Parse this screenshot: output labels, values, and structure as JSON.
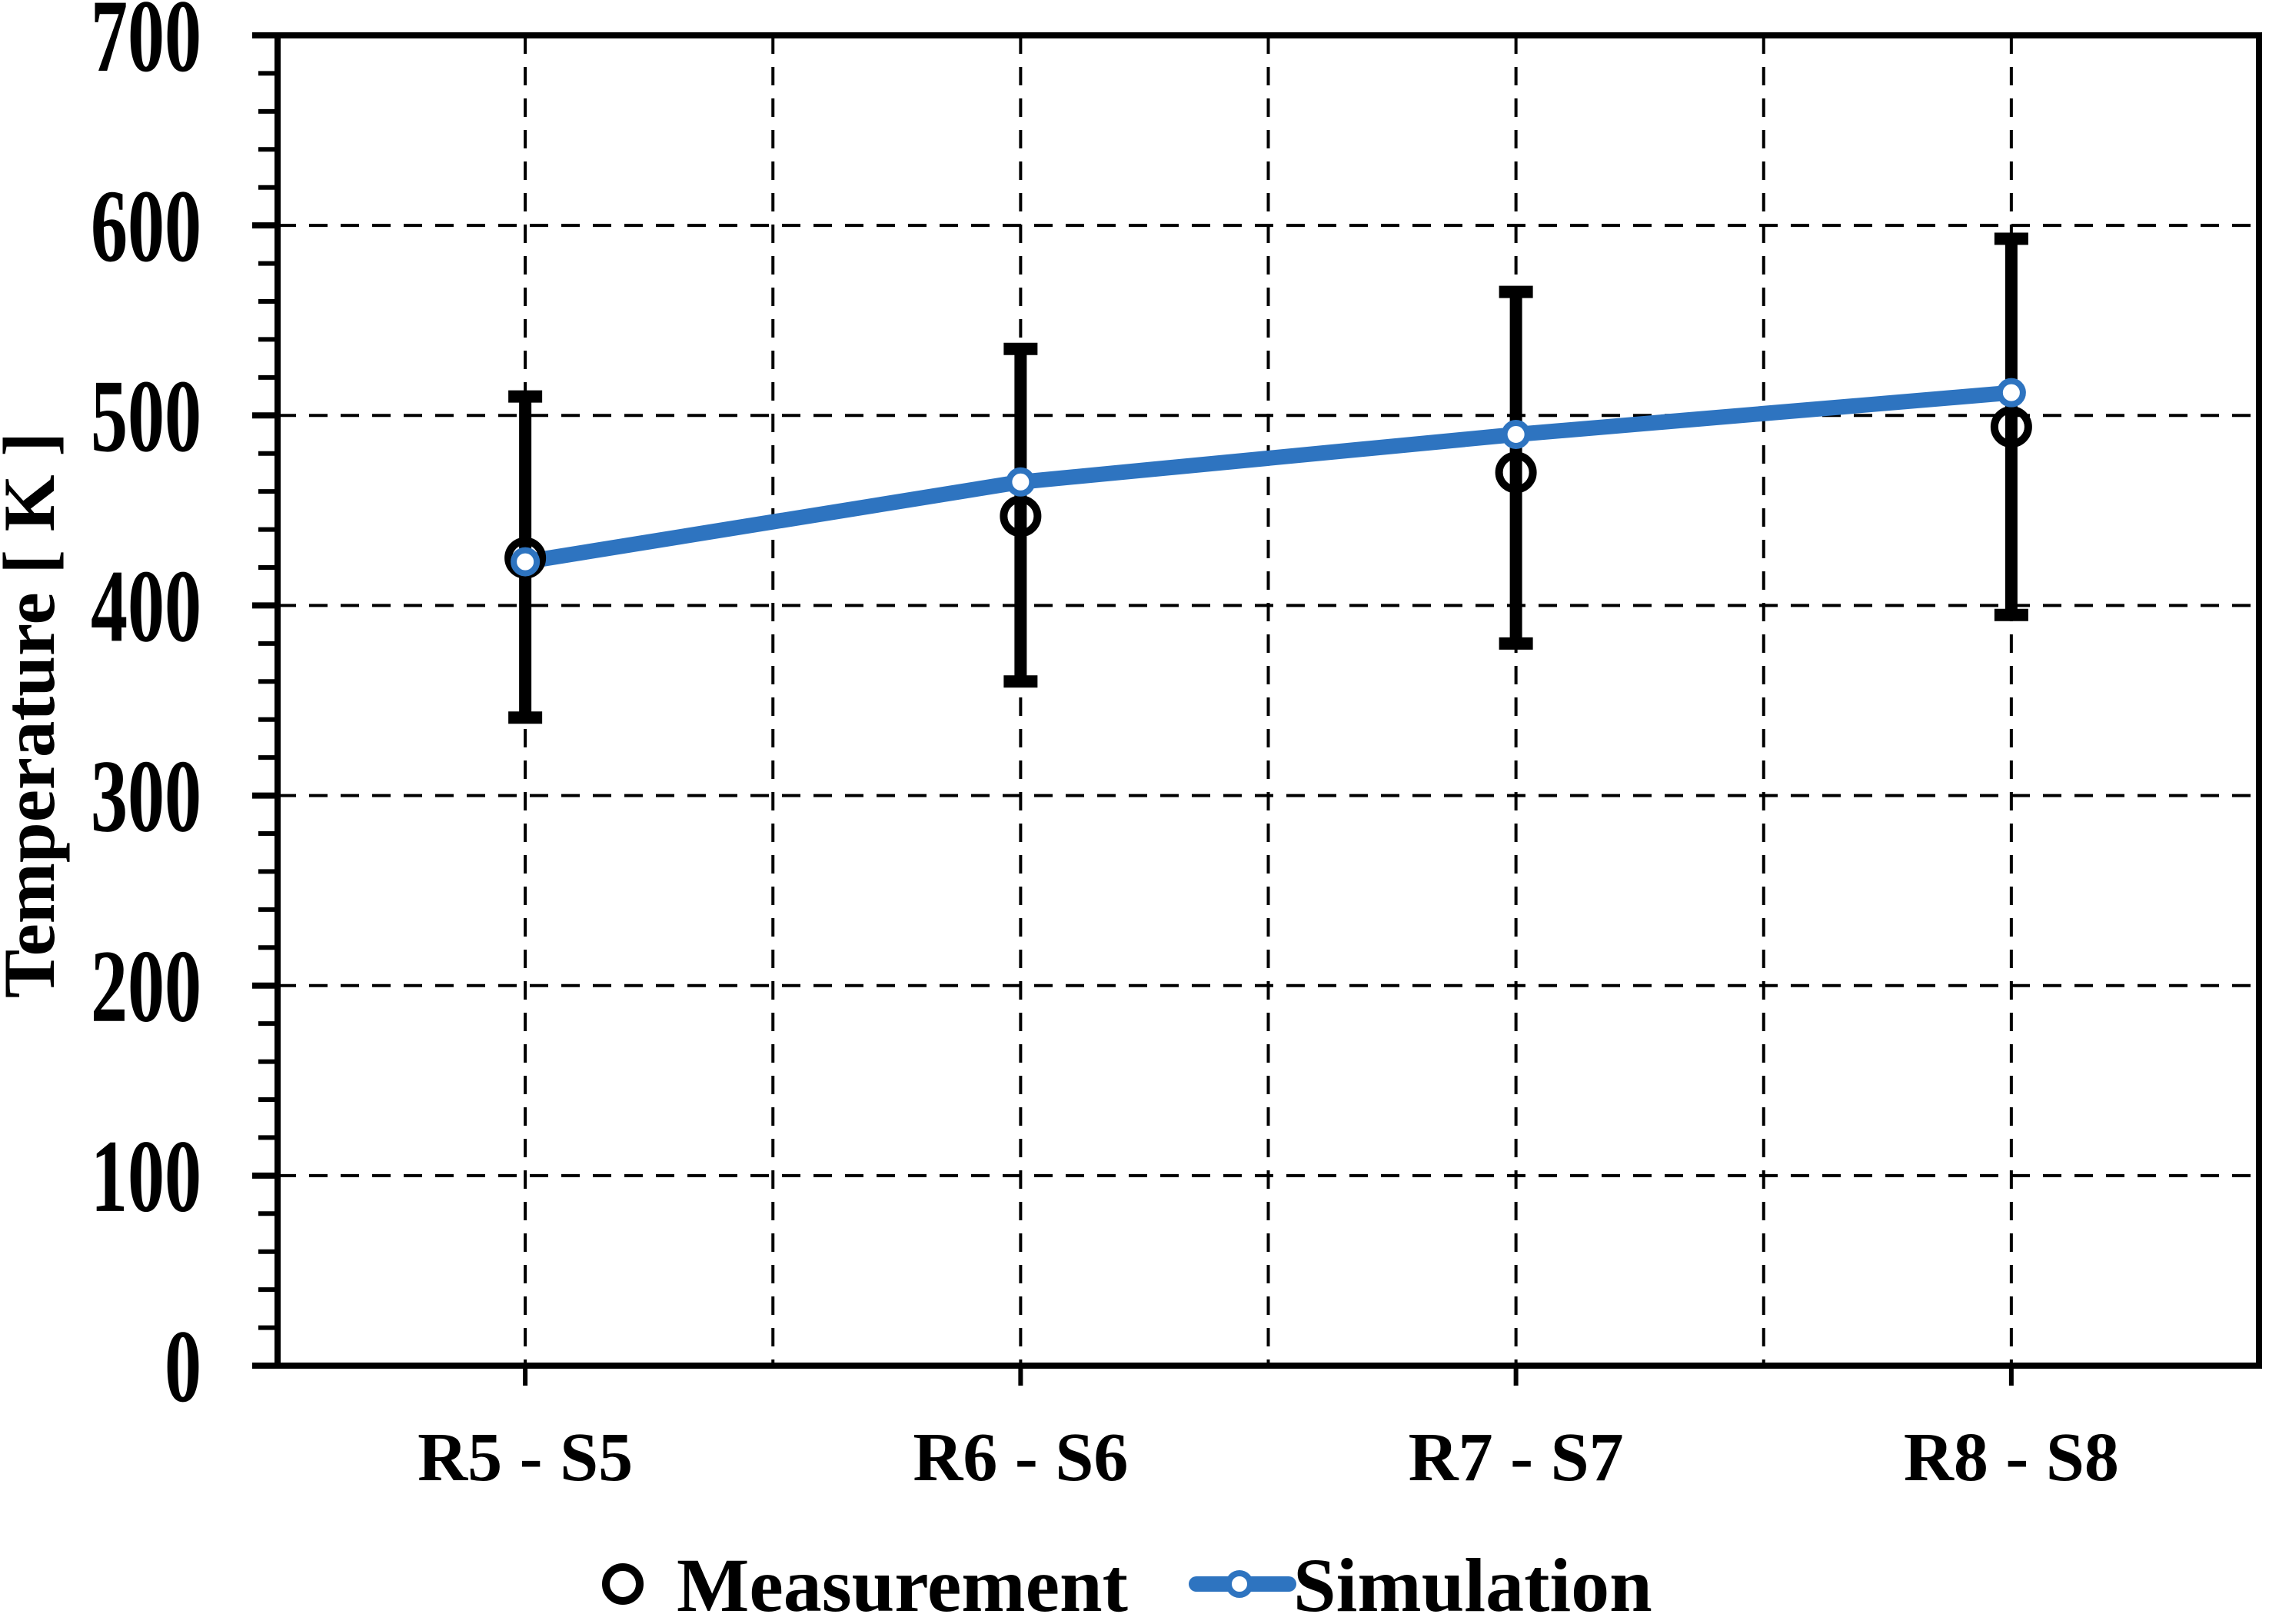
{
  "chart_data": {
    "type": "line",
    "title": "",
    "categories": [
      "R5 - S5",
      "R6 - S6",
      "R7 - S7",
      "R8 - S8"
    ],
    "series": [
      {
        "name": "Measurement",
        "plot_style": "scatter",
        "marker": "open-circle",
        "color": "#000000",
        "values": [
          425,
          447,
          470,
          494
        ],
        "error_bars": {
          "upper": [
            510,
            535,
            565,
            593
          ],
          "lower": [
            341,
            360,
            380,
            395
          ]
        }
      },
      {
        "name": "Simulation",
        "plot_style": "line",
        "marker": "open-circle",
        "color": "#2E74C0",
        "values": [
          423,
          465,
          490,
          512
        ]
      }
    ],
    "xlabel": "",
    "ylabel": "Temperature [ K ]",
    "ylim": [
      0,
      700
    ],
    "y_major_ticks": [
      0,
      100,
      200,
      300,
      400,
      500,
      600,
      700
    ],
    "y_minor_tick_step": 20,
    "grid": {
      "horizontal": true,
      "vertical": true,
      "style": "dashed"
    },
    "legend_position": "bottom"
  },
  "colors": {
    "background": "#FFFFFF",
    "axis": "#000000",
    "grid": "#000000",
    "simulation_blue": "#2E74C0",
    "marker_fill": "#FFFFFF"
  }
}
